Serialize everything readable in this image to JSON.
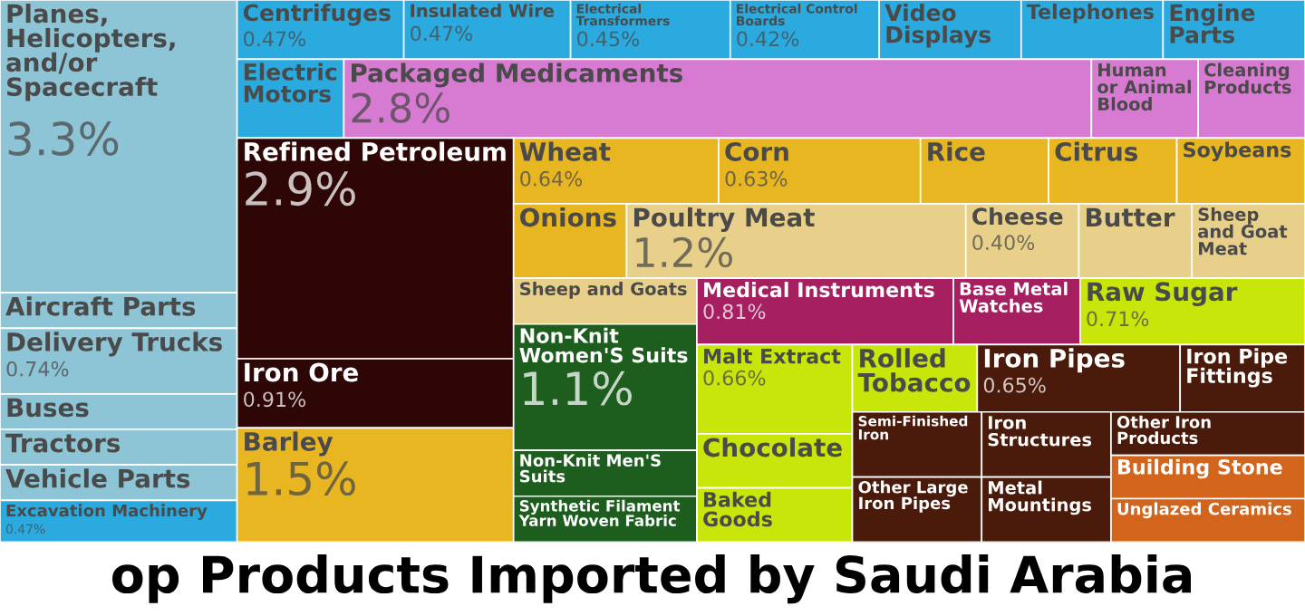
{
  "chart_data": {
    "type": "other",
    "title": "op Products Imported by Saudi Arabia",
    "categories": [
      "Planes, Helicopters, and/or Spacecraft",
      "Aircraft Parts",
      "Delivery Trucks",
      "Buses",
      "Tractors",
      "Vehicle Parts",
      "Excavation Machinery",
      "Centrifuges",
      "Insulated Wire",
      "Electrical Transformers",
      "Electrical Control Boards",
      "Video Displays",
      "Telephones",
      "Engine Parts",
      "Electric Motors",
      "Packaged Medicaments",
      "Human or Animal Blood",
      "Cleaning Products",
      "Refined Petroleum",
      "Iron Ore",
      "Barley",
      "Wheat",
      "Corn",
      "Rice",
      "Citrus",
      "Soybeans",
      "Onions",
      "Poultry Meat",
      "Cheese",
      "Butter",
      "Sheep and Goat Meat",
      "Sheep and Goats",
      "Non-Knit Women'S Suits",
      "Non-Knit Men'S Suits",
      "Synthetic Filament Yarn Woven Fabric",
      "Medical Instruments",
      "Base Metal Watches",
      "Raw Sugar",
      "Malt Extract",
      "Chocolate",
      "Baked Goods",
      "Rolled Tobacco",
      "Iron Pipes",
      "Iron Pipe Fittings",
      "Semi-Finished Iron",
      "Other Large Iron Pipes",
      "Iron Structures",
      "Metal Mountings",
      "Other Iron Products",
      "Building Stone",
      "Unglazed Ceramics"
    ],
    "values": [
      3.3,
      null,
      0.74,
      null,
      null,
      null,
      0.47,
      0.47,
      0.47,
      0.45,
      0.42,
      null,
      null,
      null,
      null,
      2.8,
      null,
      null,
      2.9,
      0.91,
      1.5,
      0.64,
      0.63,
      null,
      null,
      null,
      null,
      1.2,
      0.4,
      null,
      null,
      null,
      1.1,
      null,
      null,
      0.81,
      null,
      0.71,
      0.66,
      null,
      null,
      null,
      0.65,
      null,
      null,
      null,
      null,
      null,
      null,
      null,
      null
    ],
    "value_labels": [
      "3.3%",
      null,
      "0.74%",
      null,
      null,
      null,
      "0.47%",
      "0.47%",
      "0.47%",
      "0.45%",
      "0.42%",
      null,
      null,
      null,
      null,
      "2.8%",
      null,
      null,
      "2.9%",
      "0.91%",
      "1.5%",
      "0.64%",
      "0.63%",
      null,
      null,
      null,
      null,
      "1.2%",
      "0.40%",
      null,
      null,
      null,
      "1.1%",
      null,
      null,
      "0.81%",
      null,
      "0.71%",
      "0.66%",
      null,
      null,
      null,
      "0.65%",
      null,
      null,
      null,
      null,
      null,
      null,
      null,
      null
    ],
    "colors": [
      "#8ec5d6",
      "#8ec5d6",
      "#8ec5d6",
      "#8ec5d6",
      "#8ec5d6",
      "#8ec5d6",
      "#2aaadf",
      "#2aaadf",
      "#2aaadf",
      "#2aaadf",
      "#2aaadf",
      "#2aaadf",
      "#2aaadf",
      "#2aaadf",
      "#2aaadf",
      "#d77ad1",
      "#d77ad1",
      "#d77ad1",
      "#2e0606",
      "#2e0606",
      "#e8b620",
      "#e8b620",
      "#e8b620",
      "#e8b620",
      "#e8b620",
      "#e8b620",
      "#e8b620",
      "#e8d08a",
      "#e8d08a",
      "#e8d08a",
      "#e8d08a",
      "#e8d08a",
      "#1d5e1e",
      "#1d5e1e",
      "#1d5e1e",
      "#a51f61",
      "#a51f61",
      "#c8e60a",
      "#c8e60a",
      "#c8e60a",
      "#c8e60a",
      "#c8e60a",
      "#4a1a0a",
      "#4a1a0a",
      "#4a1a0a",
      "#4a1a0a",
      "#4a1a0a",
      "#4a1a0a",
      "#4a1a0a",
      "#d2641c",
      "#d2641c"
    ]
  }
}
